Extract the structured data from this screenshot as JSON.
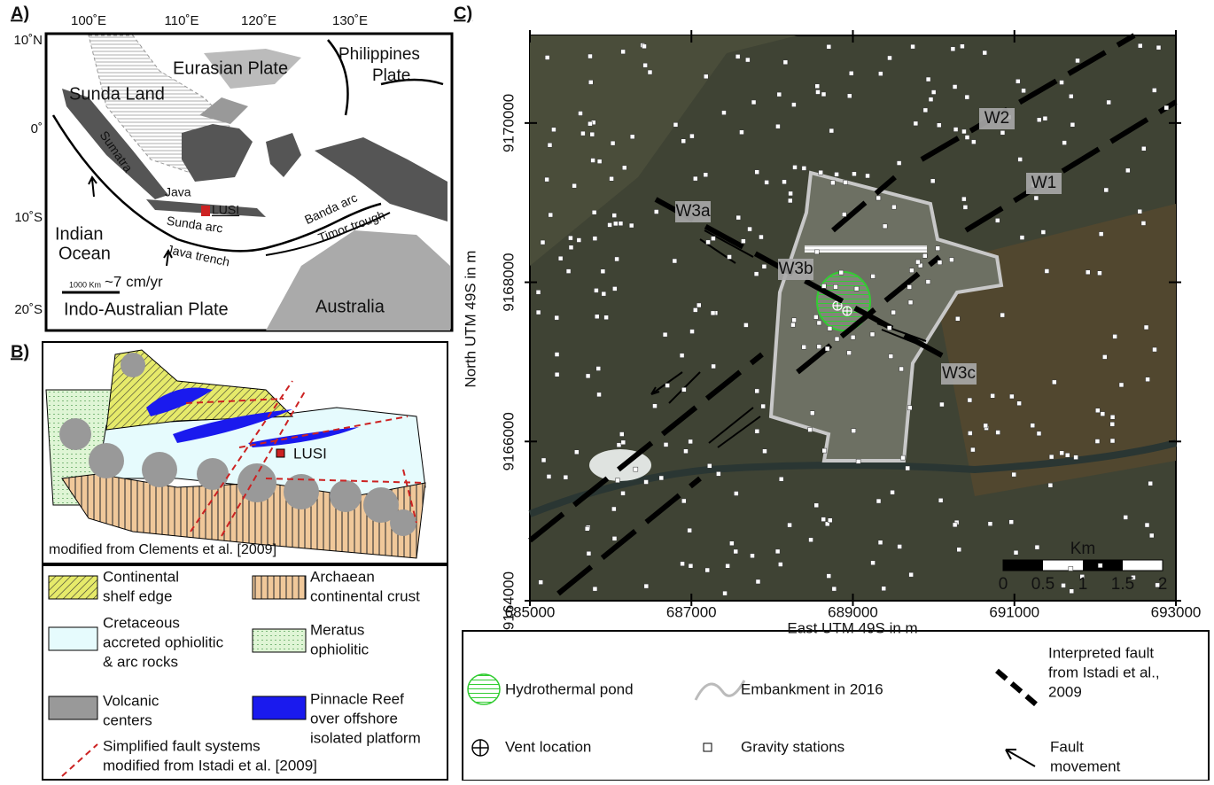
{
  "panel_a": {
    "label": "A)",
    "lon_labels": [
      "100˚E",
      "110˚E",
      "120˚E",
      "130˚E"
    ],
    "lat_labels": [
      "10˚N",
      "0˚",
      "10˚S",
      "20˚S"
    ],
    "places": [
      "Eurasian Plate",
      "Philippines",
      "Plate",
      "Sunda Land",
      "Sumatra",
      "Java",
      "LUSI",
      "Sunda arc",
      "Banda arc",
      "Timor trough",
      "Java trench",
      "Indian",
      "Ocean",
      "~7 cm/yr",
      "1000 Km",
      "Indo-Australian Plate",
      "Australia"
    ]
  },
  "panel_b": {
    "label": "B)",
    "lusi": "LUSI",
    "credit": "modified from Clements et al. [2009]",
    "legend": [
      [
        "Continental",
        "shelf edge"
      ],
      [
        "Archaean",
        "continental crust"
      ],
      [
        "Cretaceous",
        "accreted ophiolitic",
        "& arc rocks"
      ],
      [
        "Meratus",
        "ophiolitic"
      ],
      [
        "Volcanic",
        "centers"
      ],
      [
        "Pinnacle Reef",
        "over offshore",
        "isolated platform"
      ],
      [
        "Simplified fault systems",
        "modified from Istadi et al. [2009]"
      ]
    ]
  },
  "panel_c": {
    "label": "C)",
    "faults": [
      "W1",
      "W2",
      "W3a",
      "W3b",
      "W3c"
    ],
    "x_label": "East UTM 49S in m",
    "y_label": "North UTM 49S in m",
    "xlim": [
      685000,
      693000
    ],
    "ylim": [
      9164000,
      9171100
    ],
    "xticks": [
      685000,
      687000,
      689000,
      691000,
      693000
    ],
    "yticks": [
      9164000,
      9166000,
      9168000,
      9170000
    ],
    "scale_unit": "Km",
    "scale_labels": [
      "0",
      "0.5",
      "1",
      "1.5",
      "2"
    ],
    "legend": [
      [
        "Hydrothermal pond"
      ],
      [
        "Embankment in 2016"
      ],
      [
        "Interpreted fault",
        "from Istadi et al.,",
        "2009"
      ],
      [
        "Vent location"
      ],
      [
        "Gravity stations"
      ],
      [
        "Fault",
        "movement"
      ]
    ]
  }
}
